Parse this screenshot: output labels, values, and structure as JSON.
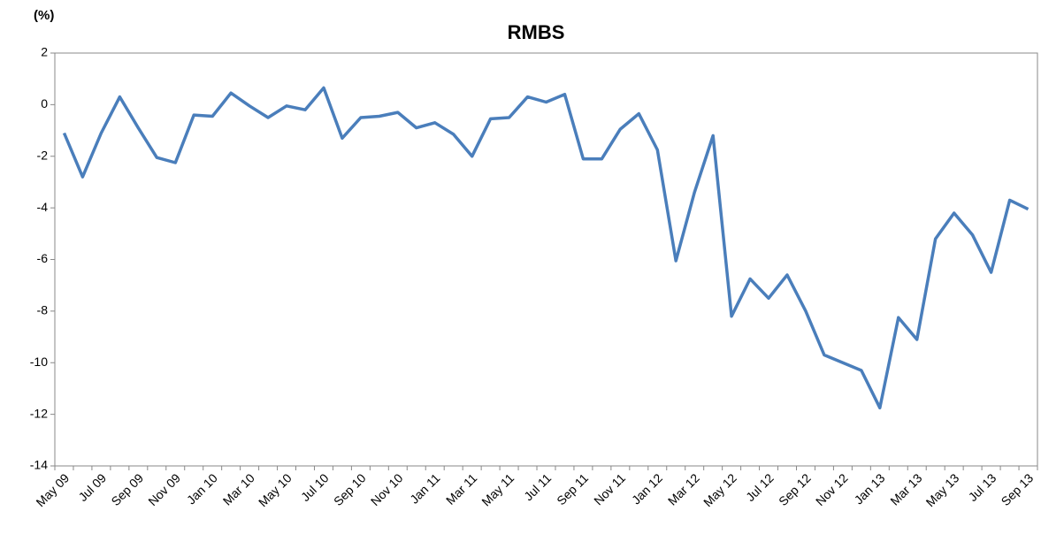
{
  "chart_data": {
    "type": "line",
    "title": "RMBS",
    "y_label": "(%)",
    "categories": [
      "May 09",
      null,
      "Jul 09",
      null,
      "Sep 09",
      null,
      "Nov 09",
      null,
      "Jan 10",
      null,
      "Mar 10",
      null,
      "May 10",
      null,
      "Jul 10",
      null,
      "Sep 10",
      null,
      "Nov 10",
      null,
      "Jan 11",
      null,
      "Mar 11",
      null,
      "May 11",
      null,
      "Jul 11",
      null,
      "Sep 11",
      null,
      "Nov 11",
      null,
      "Jan 12",
      null,
      "Mar 12",
      null,
      "May 12",
      null,
      "Jul 12",
      null,
      "Sep 12",
      null,
      "Nov 12",
      null,
      "Jan 13",
      null,
      "Mar 13",
      null,
      "May 13",
      null,
      "Jul 13",
      null,
      "Sep 13"
    ],
    "values": [
      -1.1,
      -2.8,
      -1.1,
      0.3,
      -0.9,
      -2.05,
      -2.25,
      -0.4,
      -0.45,
      0.45,
      -0.05,
      -0.5,
      -0.05,
      -0.2,
      0.65,
      -1.3,
      -0.5,
      -0.45,
      -0.3,
      -0.9,
      -0.7,
      -1.15,
      -2.0,
      -0.55,
      -0.5,
      0.3,
      0.1,
      0.4,
      -2.1,
      -2.1,
      -0.95,
      -0.35,
      -1.75,
      -6.05,
      -3.4,
      -1.2,
      -8.2,
      -6.75,
      -7.5,
      -6.6,
      -8.0,
      -9.7,
      -10.0,
      -10.3,
      -11.75,
      -8.25,
      -9.1,
      -5.2,
      -4.2,
      -5.05,
      -6.5,
      -3.7,
      -4.05
    ],
    "color": "#4a7ebb",
    "ylim": [
      -14,
      2
    ],
    "yticks": [
      -14,
      -12,
      -10,
      -8,
      -6,
      -4,
      -2,
      0,
      2
    ],
    "grid": false
  }
}
